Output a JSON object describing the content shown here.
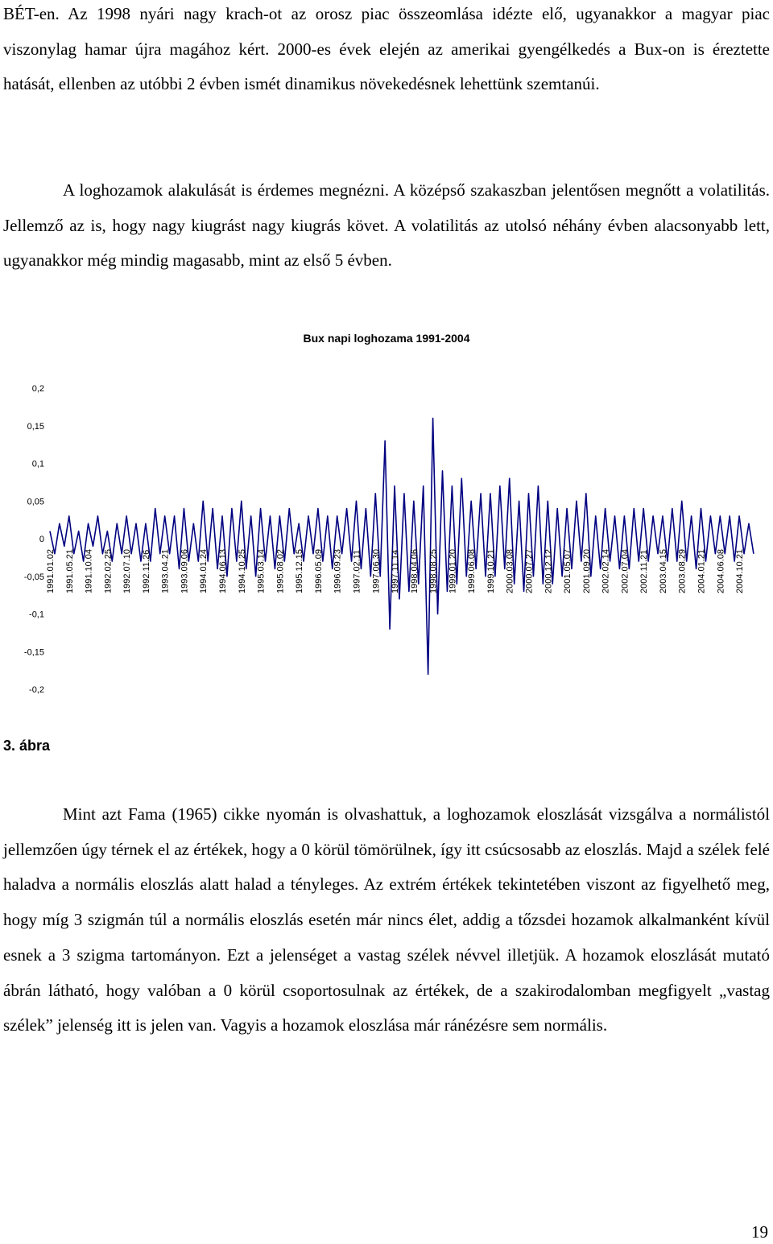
{
  "paragraphs": [
    "BÉT-en. Az 1998 nyári nagy krach-ot az orosz piac összeomlása idézte elő, ugyanakkor a magyar piac viszonylag hamar újra magához kért. 2000-es évek elején az amerikai gyengélkedés a Bux-on is éreztette hatását, ellenben az utóbbi 2 évben ismét dinamikus növekedésnek lehettünk szemtanúi.",
    "A loghozamok alakulását is érdemes megnézni. A középső szakaszban jelentősen megnőtt a volatilitás. Jellemző az is, hogy nagy kiugrást nagy kiugrás követ. A volatilitás az utolsó néhány évben alacsonyabb lett, ugyanakkor még mindig magasabb, mint az első 5 évben.",
    "Mint azt Fama (1965) cikke nyomán is olvashattuk, a loghozamok eloszlását vizsgálva a normálistól jellemzően úgy térnek el az értékek, hogy a 0 körül tömörülnek, így itt csúcsosabb az eloszlás. Majd a szélek felé haladva a normális eloszlás alatt halad a tényleges. Az extrém értékek tekintetében viszont az figyelhető meg, hogy míg 3 szigmán túl a normális eloszlás esetén már nincs élet, addig a tőzsdei hozamok alkalmanként kívül esnek a 3 szigma tartományon. Ezt a jelenséget a vastag szélek névvel illetjük. A hozamok eloszlását mutató ábrán látható, hogy valóban a 0 körül csoportosulnak az értékek, de a szakirodalomban megfigyelt „vastag szélek” jelenség itt is jelen van. Vagyis a hozamok eloszlása már ránézésre sem normális."
  ],
  "chart_data": {
    "type": "line",
    "title": "Bux napi loghozama 1991-2004",
    "color": "#000080",
    "grid": false,
    "ylim": [
      -0.2,
      0.2
    ],
    "yticks": [
      {
        "value": 0.2,
        "label": "0,2"
      },
      {
        "value": 0.15,
        "label": "0,15"
      },
      {
        "value": 0.1,
        "label": "0,1"
      },
      {
        "value": 0.05,
        "label": "0,05"
      },
      0,
      {
        "value": -0.05,
        "label": "-0,05"
      },
      {
        "value": -0.1,
        "label": "-0,1"
      },
      {
        "value": -0.15,
        "label": "-0,15"
      },
      {
        "value": -0.2,
        "label": "-0,2"
      }
    ],
    "categories": [
      "1991.01.02",
      null,
      null,
      null,
      "1991.05.21",
      null,
      null,
      null,
      "1991.10.04",
      null,
      null,
      null,
      "1992.02.25",
      null,
      null,
      null,
      "1992.07.10",
      null,
      null,
      null,
      "1992.11.26",
      null,
      null,
      null,
      "1993.04.21",
      null,
      null,
      null,
      "1993.09.06",
      null,
      null,
      null,
      "1994.01.24",
      null,
      null,
      null,
      "1994.06.13",
      null,
      null,
      null,
      "1994.10.25",
      null,
      null,
      null,
      "1995.03.14",
      null,
      null,
      null,
      "1995.08.02",
      null,
      null,
      null,
      "1995.12.15",
      null,
      null,
      null,
      "1996.05.09",
      null,
      null,
      null,
      "1996.09.23",
      null,
      null,
      null,
      "1997.02.11",
      null,
      null,
      null,
      "1997.06.30",
      null,
      null,
      null,
      "1997.11.14",
      null,
      null,
      null,
      "1998.04.06",
      null,
      null,
      null,
      "1998.08.25",
      null,
      null,
      null,
      "1999.01.20",
      null,
      null,
      null,
      "1999.06.08",
      null,
      null,
      null,
      "1999.10.21",
      null,
      null,
      null,
      "2000.03.08",
      null,
      null,
      null,
      "2000.07.27",
      null,
      null,
      null,
      "2000.12.12",
      null,
      null,
      null,
      "2001.05.07",
      null,
      null,
      null,
      "2001.09.20",
      null,
      null,
      null,
      "2002.02.14",
      null,
      null,
      null,
      "2002.07.04",
      null,
      null,
      null,
      "2002.11.21",
      null,
      null,
      null,
      "2003.04.15",
      null,
      null,
      null,
      "2003.08.29",
      null,
      null,
      null,
      "2004.01.21",
      null,
      null,
      null,
      "2004.06.08",
      null,
      null,
      null,
      "2004.10.21",
      null,
      null,
      null
    ],
    "values": [
      0.01,
      -0.02,
      0.02,
      -0.01,
      0.03,
      -0.02,
      0.01,
      -0.03,
      0.02,
      -0.01,
      0.03,
      -0.02,
      0.01,
      -0.03,
      0.02,
      -0.02,
      0.03,
      -0.02,
      0.02,
      -0.03,
      0.02,
      -0.03,
      0.04,
      -0.02,
      0.03,
      -0.02,
      0.03,
      -0.04,
      0.04,
      -0.03,
      0.02,
      -0.03,
      0.05,
      -0.03,
      0.04,
      -0.04,
      0.03,
      -0.05,
      0.04,
      -0.03,
      0.05,
      -0.04,
      0.03,
      -0.05,
      0.04,
      -0.03,
      0.03,
      -0.04,
      0.03,
      -0.03,
      0.04,
      -0.02,
      0.02,
      -0.03,
      0.03,
      -0.02,
      0.04,
      -0.03,
      0.03,
      -0.04,
      0.03,
      -0.02,
      0.04,
      -0.03,
      0.05,
      -0.04,
      0.04,
      -0.05,
      0.06,
      -0.05,
      0.13,
      -0.12,
      0.07,
      -0.08,
      0.06,
      -0.07,
      0.05,
      -0.06,
      0.07,
      -0.18,
      0.16,
      -0.1,
      0.09,
      -0.07,
      0.07,
      -0.06,
      0.08,
      -0.05,
      0.05,
      -0.04,
      0.06,
      -0.05,
      0.06,
      -0.05,
      0.07,
      -0.04,
      0.08,
      -0.06,
      0.05,
      -0.07,
      0.06,
      -0.05,
      0.07,
      -0.06,
      0.05,
      -0.06,
      0.04,
      -0.05,
      0.04,
      -0.04,
      0.05,
      -0.03,
      0.06,
      -0.05,
      0.03,
      -0.04,
      0.04,
      -0.03,
      0.03,
      -0.04,
      0.03,
      -0.04,
      0.04,
      -0.03,
      0.04,
      -0.03,
      0.03,
      -0.02,
      0.03,
      -0.03,
      0.04,
      -0.03,
      0.05,
      -0.03,
      0.03,
      -0.04,
      0.04,
      -0.03,
      0.03,
      -0.02,
      0.03,
      -0.02,
      0.03,
      -0.03,
      0.03,
      -0.02,
      0.02,
      -0.02
    ]
  },
  "caption": "3. ábra",
  "page_number": "19"
}
